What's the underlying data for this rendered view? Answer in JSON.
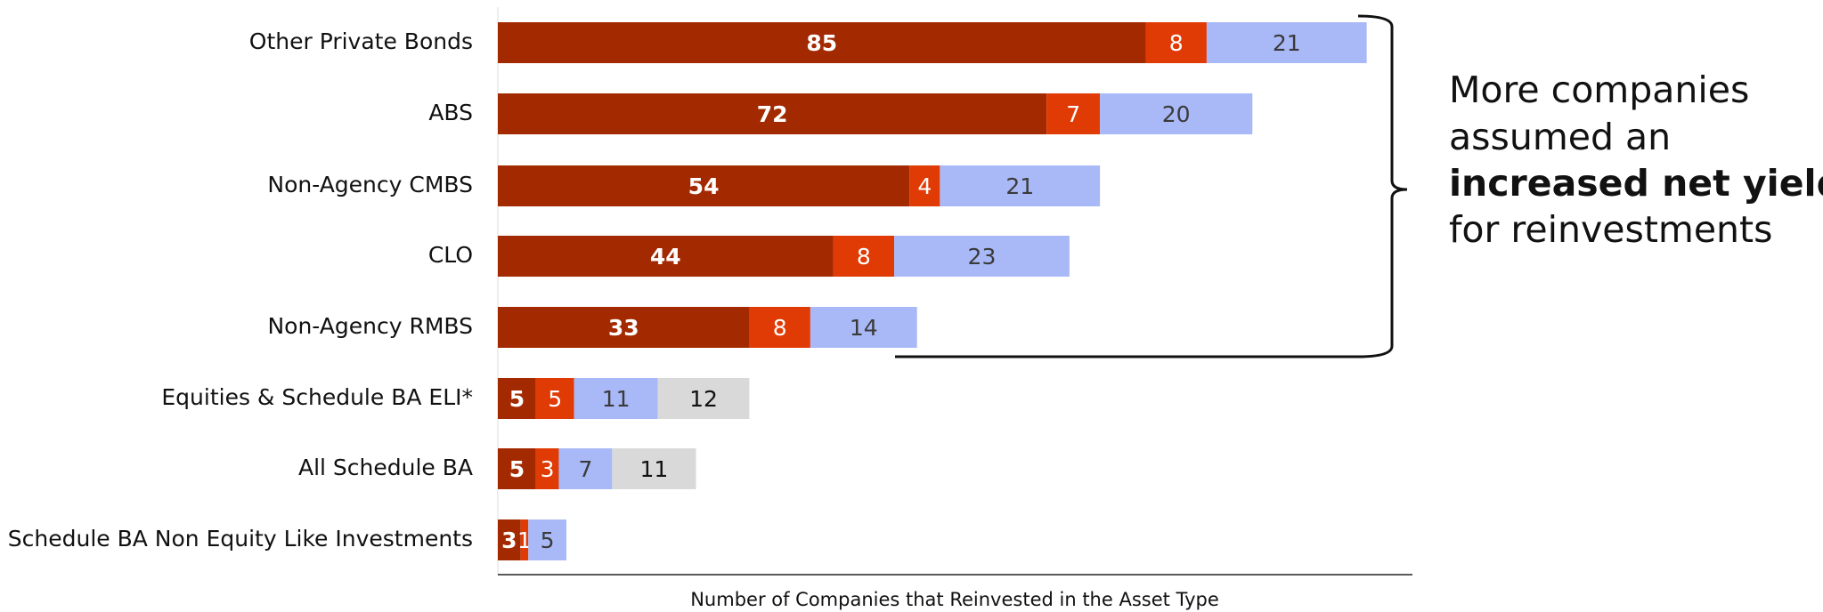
{
  "chart_data": {
    "type": "stacked_bar_horizontal",
    "categories": [
      "Other Private Bonds",
      "ABS",
      "Non-Agency CMBS",
      "CLO",
      "Non-Agency RMBS",
      "Equities & Schedule BA ELI*",
      "All Schedule BA",
      "Schedule BA Non Equity Like Investments"
    ],
    "series": [
      {
        "color": "#a32900",
        "label_color": "#ffffff",
        "values": [
          85,
          72,
          54,
          44,
          33,
          5,
          5,
          3
        ]
      },
      {
        "color": "#e03a05",
        "label_color": "#ffffff",
        "values": [
          8,
          7,
          4,
          8,
          8,
          5,
          3,
          1
        ]
      },
      {
        "color": "#a9b9f7",
        "label_color": "#3a3a3a",
        "values": [
          21,
          20,
          21,
          23,
          14,
          11,
          7,
          5
        ]
      },
      {
        "color": "#d9d9d9",
        "label_color": "#111111",
        "values": [
          null,
          null,
          null,
          null,
          null,
          12,
          11,
          null
        ]
      }
    ],
    "xlim": [
      0,
      120
    ],
    "xlabel": "Number of Companies that Reinvested in the Asset Type",
    "annotation": [
      "More companies",
      "assumed an",
      "increased net yield",
      "for reinvestments"
    ]
  }
}
